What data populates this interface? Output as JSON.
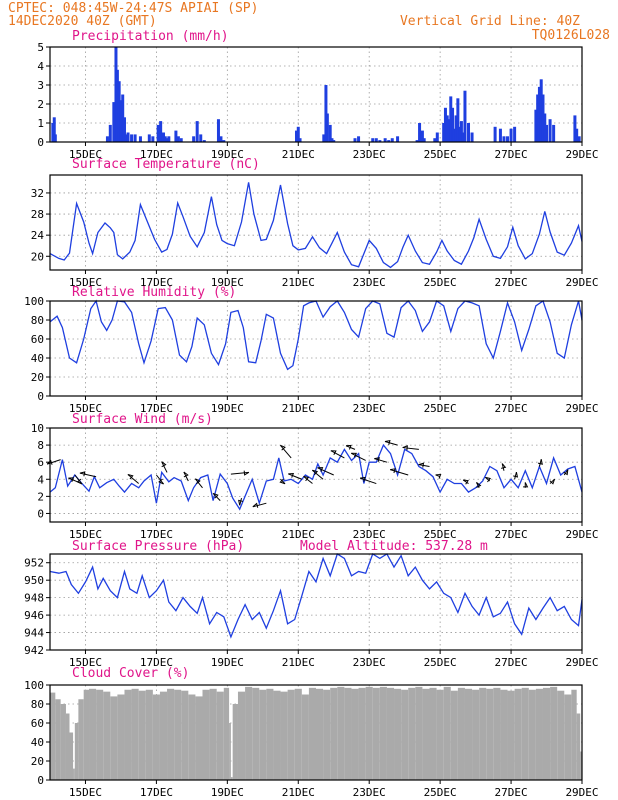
{
  "header": {
    "station": "CPTEC:   048:45W-24:47S  APIAI (SP)",
    "run": "14DEC2020 40Z (GMT)",
    "grid_note": "Vertical Grid Line: 40Z",
    "code": "TQ0126L028"
  },
  "colors": {
    "header": "#e87722",
    "title": "#e0158a",
    "line": "#1f3fe0",
    "bar": "#1f3fe0",
    "cloud": "#aaaaaa",
    "grid": "#9a9a9a",
    "arrow": "#000000"
  },
  "x_axis": {
    "ticks": [
      "15DEC",
      "17DEC",
      "19DEC",
      "21DEC",
      "23DEC",
      "25DEC",
      "27DEC",
      "29DEC"
    ],
    "tick_days": [
      1,
      3,
      5,
      7,
      9,
      11,
      13,
      15
    ],
    "range_days": [
      0,
      15
    ],
    "start": "14DEC2020"
  },
  "chart_data": [
    {
      "id": "precip",
      "type": "bar",
      "title": "Precipitation (mm/h)",
      "ylim": [
        0,
        5
      ],
      "yticks": [
        0,
        1,
        2,
        3,
        4,
        5
      ],
      "x_days": [
        0.08,
        0.12,
        0.15,
        1.62,
        1.7,
        1.8,
        1.86,
        1.9,
        1.95,
        2.0,
        2.05,
        2.1,
        2.15,
        2.2,
        2.3,
        2.4,
        2.55,
        2.8,
        2.9,
        3.05,
        3.12,
        3.2,
        3.25,
        3.3,
        3.35,
        3.55,
        3.62,
        3.7,
        4.05,
        4.15,
        4.25,
        4.35,
        4.75,
        4.82,
        4.9,
        6.95,
        7.0,
        7.05,
        7.72,
        7.78,
        7.82,
        7.9,
        7.95,
        8.0,
        8.6,
        8.7,
        9.1,
        9.2,
        9.3,
        9.45,
        9.55,
        9.65,
        9.8,
        10.35,
        10.42,
        10.5,
        10.55,
        10.85,
        10.92,
        11.1,
        11.15,
        11.2,
        11.25,
        11.3,
        11.35,
        11.4,
        11.45,
        11.5,
        11.55,
        11.6,
        11.65,
        11.7,
        11.8,
        11.9,
        12.55,
        12.7,
        12.8,
        12.9,
        13.0,
        13.1,
        13.7,
        13.75,
        13.8,
        13.85,
        13.9,
        13.95,
        14.0,
        14.1,
        14.2,
        14.8,
        14.85,
        14.92
      ],
      "values": [
        1.0,
        1.3,
        0.4,
        0.3,
        0.9,
        2.1,
        5.0,
        3.8,
        3.2,
        2.2,
        2.5,
        1.3,
        0.4,
        0.5,
        0.4,
        0.4,
        0.3,
        0.4,
        0.3,
        0.9,
        1.1,
        0.5,
        0.3,
        0.2,
        0.3,
        0.6,
        0.3,
        0.2,
        0.3,
        1.1,
        0.4,
        0.1,
        1.2,
        0.3,
        0.1,
        0.6,
        0.8,
        0.2,
        0.4,
        3.0,
        1.5,
        0.9,
        0.2,
        0.1,
        0.2,
        0.3,
        0.2,
        0.2,
        0.1,
        0.2,
        0.1,
        0.2,
        0.3,
        0.1,
        1.0,
        0.6,
        0.2,
        0.2,
        0.5,
        1.0,
        1.8,
        1.4,
        1.2,
        2.4,
        1.8,
        0.7,
        1.4,
        2.3,
        0.8,
        1.1,
        0.5,
        2.7,
        1.0,
        0.5,
        0.8,
        0.7,
        0.3,
        0.3,
        0.7,
        0.8,
        1.7,
        2.5,
        2.9,
        3.3,
        2.5,
        1.5,
        0.9,
        1.2,
        0.9,
        1.4,
        0.7,
        0.3
      ]
    },
    {
      "id": "temp",
      "type": "line",
      "title": "Surface Temperature (nC)",
      "ylim": [
        17.4,
        35.4
      ],
      "yticks": [
        20,
        24,
        28,
        32
      ],
      "x_days": [
        0.0,
        0.25,
        0.4,
        0.55,
        0.75,
        0.95,
        1.1,
        1.2,
        1.35,
        1.55,
        1.7,
        1.8,
        1.9,
        2.05,
        2.25,
        2.4,
        2.55,
        2.75,
        2.95,
        3.15,
        3.3,
        3.45,
        3.6,
        3.75,
        3.95,
        4.15,
        4.35,
        4.55,
        4.7,
        4.85,
        5.0,
        5.2,
        5.4,
        5.6,
        5.75,
        5.95,
        6.1,
        6.3,
        6.5,
        6.7,
        6.85,
        7.0,
        7.2,
        7.4,
        7.6,
        7.8,
        7.95,
        8.1,
        8.3,
        8.5,
        8.7,
        8.85,
        9.0,
        9.2,
        9.4,
        9.6,
        9.8,
        9.95,
        10.1,
        10.3,
        10.5,
        10.7,
        10.9,
        11.05,
        11.2,
        11.4,
        11.6,
        11.8,
        11.95,
        12.1,
        12.3,
        12.5,
        12.7,
        12.9,
        13.05,
        13.2,
        13.4,
        13.6,
        13.8,
        13.95,
        14.1,
        14.3,
        14.5,
        14.7,
        14.9,
        15.0
      ],
      "values": [
        20.5,
        19.6,
        19.3,
        20.6,
        30.0,
        26.5,
        22.5,
        20.5,
        24.5,
        26.3,
        25.4,
        24.5,
        20.3,
        19.5,
        20.8,
        23.0,
        29.8,
        26.5,
        23.2,
        20.8,
        21.3,
        24.2,
        30.1,
        27.5,
        23.8,
        21.8,
        24.5,
        31.3,
        26.0,
        23.0,
        22.4,
        22.0,
        26.5,
        34.0,
        28.0,
        23.0,
        23.2,
        26.8,
        33.5,
        26.2,
        22.0,
        21.2,
        21.5,
        23.7,
        21.6,
        20.5,
        22.5,
        24.5,
        20.8,
        18.4,
        18.0,
        20.5,
        23.0,
        21.5,
        18.8,
        17.9,
        19.0,
        21.7,
        24.0,
        21.0,
        18.8,
        18.5,
        20.8,
        23.0,
        21.0,
        19.2,
        18.5,
        21.0,
        23.5,
        27.0,
        23.2,
        20.0,
        19.6,
        21.8,
        25.5,
        22.0,
        19.5,
        20.5,
        24.2,
        28.5,
        24.6,
        20.8,
        20.2,
        22.5,
        25.8,
        22.8
      ]
    },
    {
      "id": "rh",
      "type": "line",
      "title": "Relative Humidity (%)",
      "ylim": [
        0,
        100
      ],
      "yticks": [
        0,
        20,
        40,
        60,
        80,
        100
      ],
      "x_days": [
        0.0,
        0.2,
        0.35,
        0.55,
        0.75,
        0.95,
        1.15,
        1.3,
        1.45,
        1.6,
        1.75,
        1.9,
        2.1,
        2.3,
        2.5,
        2.65,
        2.85,
        3.05,
        3.25,
        3.45,
        3.65,
        3.85,
        4.0,
        4.15,
        4.35,
        4.55,
        4.75,
        4.95,
        5.1,
        5.3,
        5.45,
        5.6,
        5.8,
        5.95,
        6.1,
        6.3,
        6.5,
        6.7,
        6.85,
        7.0,
        7.15,
        7.3,
        7.5,
        7.7,
        7.9,
        8.1,
        8.3,
        8.5,
        8.7,
        8.9,
        9.1,
        9.3,
        9.5,
        9.7,
        9.9,
        10.1,
        10.3,
        10.5,
        10.7,
        10.9,
        11.1,
        11.3,
        11.5,
        11.7,
        11.9,
        12.1,
        12.3,
        12.5,
        12.7,
        12.9,
        13.1,
        13.3,
        13.5,
        13.7,
        13.9,
        14.1,
        14.3,
        14.5,
        14.7,
        14.9,
        15.0
      ],
      "values": [
        78,
        84,
        72,
        40,
        35,
        60,
        92,
        100,
        78,
        69,
        80,
        100,
        99,
        88,
        55,
        35,
        58,
        92,
        93,
        80,
        43,
        36,
        52,
        82,
        75,
        45,
        33,
        55,
        88,
        90,
        72,
        36,
        35,
        58,
        86,
        82,
        45,
        28,
        32,
        60,
        95,
        98,
        100,
        83,
        94,
        100,
        88,
        70,
        62,
        92,
        100,
        97,
        66,
        62,
        93,
        100,
        90,
        68,
        78,
        100,
        95,
        68,
        92,
        100,
        98,
        95,
        55,
        40,
        68,
        98,
        78,
        48,
        70,
        95,
        100,
        78,
        45,
        40,
        75,
        100,
        80
      ]
    },
    {
      "id": "wind",
      "type": "line",
      "title": "Surface Wind (m/s)",
      "ylim": [
        -1,
        10
      ],
      "yticks": [
        0,
        2,
        4,
        6,
        8,
        10
      ],
      "x_days": [
        0.0,
        0.15,
        0.35,
        0.5,
        0.7,
        0.9,
        1.1,
        1.25,
        1.4,
        1.6,
        1.8,
        1.95,
        2.1,
        2.3,
        2.5,
        2.65,
        2.85,
        3.0,
        3.15,
        3.35,
        3.5,
        3.7,
        3.9,
        4.05,
        4.25,
        4.45,
        4.6,
        4.8,
        5.0,
        5.15,
        5.35,
        5.55,
        5.7,
        5.9,
        6.1,
        6.3,
        6.45,
        6.6,
        6.8,
        7.0,
        7.2,
        7.4,
        7.55,
        7.7,
        7.9,
        8.1,
        8.3,
        8.5,
        8.7,
        8.85,
        9.0,
        9.2,
        9.4,
        9.6,
        9.8,
        10.0,
        10.2,
        10.4,
        10.6,
        10.8,
        11.0,
        11.2,
        11.4,
        11.6,
        11.8,
        12.0,
        12.2,
        12.4,
        12.6,
        12.8,
        13.0,
        13.2,
        13.4,
        13.6,
        13.8,
        14.0,
        14.2,
        14.4,
        14.6,
        14.8,
        15.0
      ],
      "values": [
        2.5,
        3.0,
        6.3,
        3.2,
        4.5,
        3.5,
        2.6,
        4.3,
        3.0,
        3.6,
        4.0,
        3.2,
        2.5,
        3.5,
        3.0,
        3.8,
        4.5,
        1.2,
        4.8,
        3.7,
        4.2,
        3.8,
        1.5,
        3.0,
        4.2,
        4.5,
        1.5,
        4.6,
        3.5,
        1.8,
        0.5,
        2.5,
        4.0,
        1.2,
        3.8,
        4.0,
        6.5,
        3.8,
        4.0,
        3.5,
        4.5,
        4.0,
        5.8,
        4.5,
        6.5,
        6.0,
        7.5,
        6.2,
        7.0,
        3.5,
        6.0,
        6.0,
        8.0,
        7.0,
        4.5,
        7.5,
        7.0,
        5.5,
        5.0,
        4.3,
        2.5,
        4.0,
        3.5,
        3.5,
        2.5,
        3.0,
        3.8,
        5.5,
        5.0,
        3.0,
        4.0,
        3.0,
        5.0,
        3.0,
        5.5,
        3.5,
        6.5,
        4.5,
        5.2,
        5.5,
        2.5
      ],
      "vectors": {
        "x_days": [
          0.3,
          0.7,
          0.9,
          1.3,
          2.5,
          3.0,
          3.3,
          3.9,
          4.3,
          4.8,
          5.1,
          5.4,
          6.1,
          6.5,
          6.8,
          7.1,
          7.4,
          7.7,
          8.0,
          8.3,
          8.6,
          8.9,
          9.2,
          9.5,
          9.8,
          10.1,
          10.4,
          10.7,
          11.0,
          11.8,
          12.1,
          12.4,
          12.8,
          13.1,
          13.4,
          13.8,
          14.1,
          14.5
        ],
        "u": [
          -1.5,
          0.8,
          -1.5,
          -1.8,
          -1.2,
          0.8,
          -0.6,
          -0.5,
          -0.8,
          -0.8,
          2.0,
          -0.2,
          -1.5,
          0.5,
          -1.2,
          -1.5,
          -1.0,
          -1.2,
          -1.8,
          -1.5,
          -1.0,
          -1.6,
          -1.8,
          -1.4,
          -1.4,
          -2.0,
          -1.8,
          -1.2,
          -0.5,
          -0.6,
          -0.3,
          -0.5,
          -0.2,
          0.2,
          0.0,
          0.2,
          0.5,
          0.4
        ],
        "v": [
          -0.5,
          -1.0,
          0.6,
          0.4,
          1.0,
          -1.0,
          1.2,
          1.0,
          1.0,
          0.8,
          0.2,
          -0.8,
          -0.4,
          -0.5,
          1.4,
          0.6,
          0.8,
          1.0,
          0.8,
          0.8,
          0.4,
          0.8,
          0.6,
          0.4,
          0.4,
          0.6,
          0.2,
          0.2,
          0.2,
          0.4,
          0.6,
          0.4,
          0.8,
          0.8,
          0.6,
          0.8,
          0.5,
          0.6
        ]
      }
    },
    {
      "id": "pressure",
      "type": "line",
      "title": "Surface Pressure (hPa)",
      "model_altitude": "Model Altitude: 537.28 m",
      "ylim": [
        942,
        953
      ],
      "yticks": [
        942,
        944,
        946,
        948,
        950,
        952
      ],
      "x_days": [
        0.0,
        0.25,
        0.45,
        0.6,
        0.8,
        1.0,
        1.2,
        1.35,
        1.5,
        1.7,
        1.9,
        2.1,
        2.25,
        2.45,
        2.6,
        2.8,
        3.0,
        3.2,
        3.35,
        3.55,
        3.75,
        3.95,
        4.15,
        4.3,
        4.5,
        4.7,
        4.9,
        5.1,
        5.3,
        5.5,
        5.7,
        5.9,
        6.1,
        6.3,
        6.5,
        6.7,
        6.9,
        7.1,
        7.3,
        7.5,
        7.7,
        7.9,
        8.1,
        8.3,
        8.5,
        8.7,
        8.9,
        9.1,
        9.3,
        9.5,
        9.7,
        9.9,
        10.1,
        10.3,
        10.5,
        10.7,
        10.9,
        11.1,
        11.3,
        11.5,
        11.7,
        11.9,
        12.1,
        12.3,
        12.5,
        12.7,
        12.9,
        13.1,
        13.3,
        13.5,
        13.7,
        13.9,
        14.1,
        14.3,
        14.5,
        14.7,
        14.9,
        15.0
      ],
      "values": [
        951.0,
        950.8,
        951.0,
        949.5,
        948.5,
        949.8,
        951.5,
        949.0,
        950.2,
        948.8,
        948.0,
        951.0,
        949.0,
        948.5,
        950.5,
        948.0,
        948.8,
        950.0,
        947.5,
        946.5,
        948.0,
        947.0,
        946.2,
        948.0,
        945.0,
        946.3,
        945.8,
        943.5,
        945.5,
        947.2,
        945.5,
        946.3,
        944.5,
        946.5,
        948.8,
        945.0,
        945.5,
        948.2,
        951.0,
        949.8,
        952.5,
        950.5,
        953.0,
        952.5,
        950.5,
        951.0,
        950.8,
        953.0,
        952.5,
        953.0,
        951.5,
        952.8,
        950.5,
        951.5,
        950.0,
        949.0,
        949.8,
        948.5,
        948.0,
        946.3,
        948.5,
        947.0,
        946.0,
        948.0,
        945.8,
        946.2,
        947.5,
        945.0,
        943.8,
        946.8,
        945.5,
        946.8,
        948.0,
        946.5,
        947.0,
        945.5,
        944.8,
        947.8
      ]
    },
    {
      "id": "cloud",
      "type": "area",
      "title": "Cloud Cover (%)",
      "ylim": [
        0,
        100
      ],
      "yticks": [
        0,
        20,
        40,
        60,
        80,
        100
      ],
      "x_days": [
        0.0,
        0.15,
        0.3,
        0.45,
        0.55,
        0.65,
        0.7,
        0.8,
        0.95,
        1.1,
        1.3,
        1.5,
        1.7,
        1.9,
        2.1,
        2.3,
        2.5,
        2.7,
        2.9,
        3.1,
        3.3,
        3.5,
        3.7,
        3.9,
        4.1,
        4.3,
        4.5,
        4.7,
        4.9,
        5.05,
        5.1,
        5.15,
        5.3,
        5.5,
        5.7,
        5.9,
        6.1,
        6.3,
        6.5,
        6.7,
        6.9,
        7.1,
        7.3,
        7.5,
        7.7,
        7.9,
        8.1,
        8.3,
        8.5,
        8.7,
        8.9,
        9.1,
        9.3,
        9.5,
        9.7,
        9.9,
        10.1,
        10.3,
        10.5,
        10.7,
        10.9,
        11.1,
        11.3,
        11.5,
        11.7,
        11.9,
        12.1,
        12.3,
        12.5,
        12.7,
        12.9,
        13.1,
        13.3,
        13.5,
        13.7,
        13.9,
        14.1,
        14.3,
        14.5,
        14.7,
        14.85,
        14.95,
        15.0
      ],
      "values": [
        92,
        85,
        80,
        70,
        50,
        12,
        60,
        85,
        95,
        96,
        95,
        93,
        88,
        90,
        95,
        96,
        94,
        95,
        90,
        93,
        96,
        95,
        94,
        90,
        88,
        95,
        96,
        93,
        97,
        60,
        3,
        80,
        93,
        98,
        97,
        95,
        96,
        94,
        93,
        95,
        96,
        90,
        97,
        96,
        95,
        97,
        98,
        97,
        96,
        97,
        98,
        97,
        98,
        97,
        96,
        95,
        97,
        98,
        96,
        97,
        95,
        98,
        94,
        97,
        96,
        95,
        97,
        96,
        97,
        95,
        94,
        96,
        97,
        95,
        96,
        97,
        98,
        94,
        90,
        95,
        70,
        30,
        40
      ]
    }
  ]
}
